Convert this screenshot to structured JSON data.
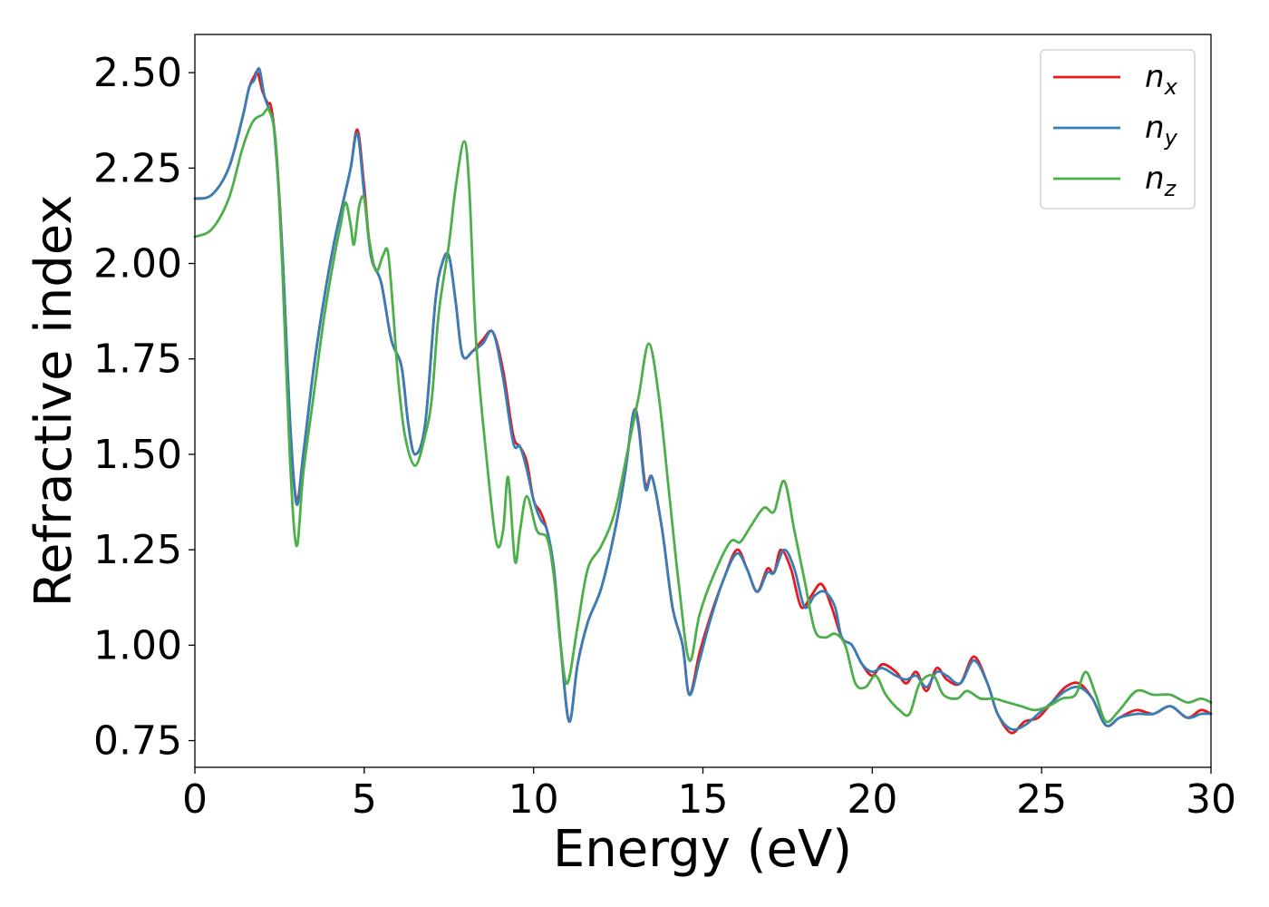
{
  "chart_data": {
    "type": "line",
    "xlabel": "Energy (eV)",
    "ylabel": "Refractive index",
    "xlim": [
      0,
      30
    ],
    "ylim": [
      0.68,
      2.6
    ],
    "x_ticks": [
      0,
      5,
      10,
      15,
      20,
      25,
      30
    ],
    "x_tick_labels": [
      "0",
      "5",
      "10",
      "15",
      "20",
      "25",
      "30"
    ],
    "y_ticks": [
      0.75,
      1.0,
      1.25,
      1.5,
      1.75,
      2.0,
      2.25,
      2.5
    ],
    "y_tick_labels": [
      "0.75",
      "1.00",
      "1.25",
      "1.50",
      "1.75",
      "2.00",
      "2.25",
      "2.50"
    ],
    "grid": false,
    "legend_position": "top-right",
    "series": [
      {
        "name": "n_x",
        "legend_base": "n",
        "legend_sub": "x",
        "color": "#e41a1c",
        "points": [
          [
            0,
            2.17
          ],
          [
            0.5,
            2.18
          ],
          [
            1.0,
            2.25
          ],
          [
            1.4,
            2.38
          ],
          [
            1.6,
            2.46
          ],
          [
            1.75,
            2.49
          ],
          [
            1.85,
            2.5
          ],
          [
            2.0,
            2.45
          ],
          [
            2.15,
            2.42
          ],
          [
            2.25,
            2.41
          ],
          [
            2.4,
            2.3
          ],
          [
            2.6,
            2.0
          ],
          [
            2.8,
            1.6
          ],
          [
            3.0,
            1.38
          ],
          [
            3.2,
            1.5
          ],
          [
            3.5,
            1.72
          ],
          [
            3.8,
            1.9
          ],
          [
            4.1,
            2.05
          ],
          [
            4.4,
            2.17
          ],
          [
            4.6,
            2.25
          ],
          [
            4.8,
            2.35
          ],
          [
            5.0,
            2.2
          ],
          [
            5.2,
            2.02
          ],
          [
            5.5,
            1.95
          ],
          [
            5.8,
            1.8
          ],
          [
            6.1,
            1.73
          ],
          [
            6.3,
            1.58
          ],
          [
            6.5,
            1.5
          ],
          [
            6.8,
            1.58
          ],
          [
            7.1,
            1.9
          ],
          [
            7.3,
            2.0
          ],
          [
            7.5,
            2.02
          ],
          [
            7.7,
            1.9
          ],
          [
            7.9,
            1.76
          ],
          [
            8.2,
            1.77
          ],
          [
            8.5,
            1.8
          ],
          [
            8.8,
            1.82
          ],
          [
            9.1,
            1.72
          ],
          [
            9.4,
            1.55
          ],
          [
            9.6,
            1.52
          ],
          [
            9.8,
            1.48
          ],
          [
            10.0,
            1.38
          ],
          [
            10.2,
            1.35
          ],
          [
            10.4,
            1.3
          ],
          [
            10.6,
            1.2
          ],
          [
            10.8,
            1.0
          ],
          [
            11.05,
            0.8
          ],
          [
            11.3,
            0.95
          ],
          [
            11.6,
            1.06
          ],
          [
            12.0,
            1.15
          ],
          [
            12.4,
            1.3
          ],
          [
            12.7,
            1.45
          ],
          [
            12.95,
            1.61
          ],
          [
            13.1,
            1.58
          ],
          [
            13.3,
            1.42
          ],
          [
            13.5,
            1.44
          ],
          [
            13.8,
            1.3
          ],
          [
            14.1,
            1.1
          ],
          [
            14.4,
            1.0
          ],
          [
            14.6,
            0.87
          ],
          [
            14.9,
            0.98
          ],
          [
            15.2,
            1.07
          ],
          [
            15.6,
            1.17
          ],
          [
            16.0,
            1.25
          ],
          [
            16.3,
            1.2
          ],
          [
            16.6,
            1.14
          ],
          [
            16.9,
            1.2
          ],
          [
            17.1,
            1.19
          ],
          [
            17.3,
            1.25
          ],
          [
            17.6,
            1.2
          ],
          [
            17.9,
            1.1
          ],
          [
            18.2,
            1.13
          ],
          [
            18.5,
            1.16
          ],
          [
            18.8,
            1.1
          ],
          [
            19.1,
            1.02
          ],
          [
            19.4,
            1.0
          ],
          [
            19.7,
            0.95
          ],
          [
            20.0,
            0.92
          ],
          [
            20.3,
            0.95
          ],
          [
            20.7,
            0.93
          ],
          [
            21.0,
            0.9
          ],
          [
            21.3,
            0.93
          ],
          [
            21.6,
            0.88
          ],
          [
            21.9,
            0.94
          ],
          [
            22.2,
            0.91
          ],
          [
            22.6,
            0.9
          ],
          [
            23.0,
            0.97
          ],
          [
            23.4,
            0.9
          ],
          [
            23.7,
            0.82
          ],
          [
            24.1,
            0.77
          ],
          [
            24.5,
            0.8
          ],
          [
            24.9,
            0.81
          ],
          [
            25.3,
            0.85
          ],
          [
            25.7,
            0.89
          ],
          [
            26.1,
            0.9
          ],
          [
            26.5,
            0.86
          ],
          [
            26.9,
            0.79
          ],
          [
            27.3,
            0.81
          ],
          [
            27.8,
            0.83
          ],
          [
            28.3,
            0.82
          ],
          [
            28.8,
            0.84
          ],
          [
            29.3,
            0.81
          ],
          [
            29.7,
            0.83
          ],
          [
            30.0,
            0.82
          ]
        ]
      },
      {
        "name": "n_y",
        "legend_base": "n",
        "legend_sub": "y",
        "color": "#377eb8",
        "points": [
          [
            0,
            2.17
          ],
          [
            0.5,
            2.18
          ],
          [
            1.0,
            2.25
          ],
          [
            1.4,
            2.38
          ],
          [
            1.6,
            2.46
          ],
          [
            1.75,
            2.48
          ],
          [
            1.9,
            2.51
          ],
          [
            2.05,
            2.44
          ],
          [
            2.2,
            2.4
          ],
          [
            2.35,
            2.34
          ],
          [
            2.6,
            2.0
          ],
          [
            2.8,
            1.6
          ],
          [
            3.0,
            1.37
          ],
          [
            3.2,
            1.5
          ],
          [
            3.5,
            1.72
          ],
          [
            3.8,
            1.9
          ],
          [
            4.1,
            2.05
          ],
          [
            4.4,
            2.17
          ],
          [
            4.6,
            2.25
          ],
          [
            4.8,
            2.34
          ],
          [
            5.0,
            2.18
          ],
          [
            5.2,
            2.02
          ],
          [
            5.5,
            1.95
          ],
          [
            5.8,
            1.8
          ],
          [
            6.1,
            1.73
          ],
          [
            6.3,
            1.58
          ],
          [
            6.5,
            1.5
          ],
          [
            6.8,
            1.58
          ],
          [
            7.1,
            1.9
          ],
          [
            7.3,
            2.0
          ],
          [
            7.5,
            2.02
          ],
          [
            7.7,
            1.9
          ],
          [
            7.9,
            1.76
          ],
          [
            8.2,
            1.77
          ],
          [
            8.5,
            1.79
          ],
          [
            8.8,
            1.82
          ],
          [
            9.1,
            1.7
          ],
          [
            9.4,
            1.53
          ],
          [
            9.6,
            1.52
          ],
          [
            9.8,
            1.46
          ],
          [
            10.0,
            1.38
          ],
          [
            10.2,
            1.33
          ],
          [
            10.4,
            1.3
          ],
          [
            10.6,
            1.2
          ],
          [
            10.8,
            1.0
          ],
          [
            11.05,
            0.8
          ],
          [
            11.3,
            0.95
          ],
          [
            11.6,
            1.06
          ],
          [
            12.0,
            1.15
          ],
          [
            12.4,
            1.3
          ],
          [
            12.7,
            1.45
          ],
          [
            12.95,
            1.61
          ],
          [
            13.1,
            1.57
          ],
          [
            13.3,
            1.41
          ],
          [
            13.5,
            1.44
          ],
          [
            13.8,
            1.3
          ],
          [
            14.1,
            1.1
          ],
          [
            14.4,
            1.0
          ],
          [
            14.6,
            0.87
          ],
          [
            14.9,
            0.96
          ],
          [
            15.2,
            1.06
          ],
          [
            15.6,
            1.17
          ],
          [
            16.0,
            1.24
          ],
          [
            16.3,
            1.2
          ],
          [
            16.6,
            1.14
          ],
          [
            16.9,
            1.19
          ],
          [
            17.1,
            1.19
          ],
          [
            17.4,
            1.25
          ],
          [
            17.7,
            1.2
          ],
          [
            18.0,
            1.1
          ],
          [
            18.3,
            1.13
          ],
          [
            18.6,
            1.14
          ],
          [
            18.9,
            1.1
          ],
          [
            19.1,
            1.02
          ],
          [
            19.4,
            1.0
          ],
          [
            19.7,
            0.95
          ],
          [
            20.0,
            0.93
          ],
          [
            20.3,
            0.94
          ],
          [
            20.7,
            0.92
          ],
          [
            21.0,
            0.91
          ],
          [
            21.3,
            0.92
          ],
          [
            21.6,
            0.89
          ],
          [
            21.9,
            0.93
          ],
          [
            22.2,
            0.92
          ],
          [
            22.6,
            0.9
          ],
          [
            23.0,
            0.96
          ],
          [
            23.4,
            0.9
          ],
          [
            23.7,
            0.82
          ],
          [
            24.1,
            0.78
          ],
          [
            24.5,
            0.79
          ],
          [
            24.9,
            0.82
          ],
          [
            25.3,
            0.85
          ],
          [
            25.7,
            0.88
          ],
          [
            26.1,
            0.89
          ],
          [
            26.5,
            0.86
          ],
          [
            26.9,
            0.79
          ],
          [
            27.3,
            0.81
          ],
          [
            27.8,
            0.82
          ],
          [
            28.3,
            0.82
          ],
          [
            28.8,
            0.84
          ],
          [
            29.3,
            0.81
          ],
          [
            29.7,
            0.82
          ],
          [
            30.0,
            0.82
          ]
        ]
      },
      {
        "name": "n_z",
        "legend_base": "n",
        "legend_sub": "z",
        "color": "#4daf4a",
        "points": [
          [
            0,
            2.07
          ],
          [
            0.5,
            2.09
          ],
          [
            1.0,
            2.17
          ],
          [
            1.4,
            2.3
          ],
          [
            1.7,
            2.37
          ],
          [
            2.0,
            2.39
          ],
          [
            2.2,
            2.4
          ],
          [
            2.4,
            2.3
          ],
          [
            2.6,
            1.95
          ],
          [
            2.8,
            1.5
          ],
          [
            3.0,
            1.26
          ],
          [
            3.2,
            1.45
          ],
          [
            3.5,
            1.65
          ],
          [
            3.8,
            1.85
          ],
          [
            4.1,
            2.01
          ],
          [
            4.3,
            2.1
          ],
          [
            4.45,
            2.16
          ],
          [
            4.6,
            2.1
          ],
          [
            4.7,
            2.05
          ],
          [
            4.85,
            2.15
          ],
          [
            5.0,
            2.17
          ],
          [
            5.15,
            2.06
          ],
          [
            5.35,
            1.98
          ],
          [
            5.55,
            2.02
          ],
          [
            5.7,
            2.03
          ],
          [
            5.85,
            1.88
          ],
          [
            6.0,
            1.7
          ],
          [
            6.2,
            1.55
          ],
          [
            6.5,
            1.47
          ],
          [
            6.8,
            1.55
          ],
          [
            7.0,
            1.65
          ],
          [
            7.2,
            1.87
          ],
          [
            7.5,
            2.05
          ],
          [
            7.7,
            2.2
          ],
          [
            7.95,
            2.32
          ],
          [
            8.1,
            2.2
          ],
          [
            8.3,
            1.8
          ],
          [
            8.6,
            1.5
          ],
          [
            8.9,
            1.27
          ],
          [
            9.1,
            1.3
          ],
          [
            9.25,
            1.44
          ],
          [
            9.45,
            1.22
          ],
          [
            9.6,
            1.3
          ],
          [
            9.8,
            1.39
          ],
          [
            10.1,
            1.3
          ],
          [
            10.4,
            1.28
          ],
          [
            10.6,
            1.18
          ],
          [
            10.8,
            1.0
          ],
          [
            11.0,
            0.9
          ],
          [
            11.3,
            1.05
          ],
          [
            11.6,
            1.2
          ],
          [
            12.0,
            1.26
          ],
          [
            12.4,
            1.35
          ],
          [
            12.8,
            1.52
          ],
          [
            13.1,
            1.65
          ],
          [
            13.4,
            1.79
          ],
          [
            13.7,
            1.65
          ],
          [
            14.0,
            1.4
          ],
          [
            14.3,
            1.15
          ],
          [
            14.6,
            0.96
          ],
          [
            14.9,
            1.08
          ],
          [
            15.3,
            1.18
          ],
          [
            15.8,
            1.27
          ],
          [
            16.1,
            1.27
          ],
          [
            16.4,
            1.31
          ],
          [
            16.8,
            1.36
          ],
          [
            17.1,
            1.35
          ],
          [
            17.4,
            1.43
          ],
          [
            17.7,
            1.3
          ],
          [
            18.0,
            1.17
          ],
          [
            18.3,
            1.04
          ],
          [
            18.6,
            1.02
          ],
          [
            18.9,
            1.03
          ],
          [
            19.2,
            1.0
          ],
          [
            19.5,
            0.9
          ],
          [
            19.8,
            0.89
          ],
          [
            20.1,
            0.92
          ],
          [
            20.4,
            0.87
          ],
          [
            20.8,
            0.83
          ],
          [
            21.1,
            0.82
          ],
          [
            21.4,
            0.9
          ],
          [
            21.8,
            0.92
          ],
          [
            22.1,
            0.87
          ],
          [
            22.5,
            0.86
          ],
          [
            22.8,
            0.88
          ],
          [
            23.2,
            0.86
          ],
          [
            23.6,
            0.86
          ],
          [
            24.0,
            0.85
          ],
          [
            24.4,
            0.84
          ],
          [
            24.8,
            0.83
          ],
          [
            25.2,
            0.84
          ],
          [
            25.6,
            0.86
          ],
          [
            26.0,
            0.87
          ],
          [
            26.3,
            0.93
          ],
          [
            26.6,
            0.87
          ],
          [
            26.9,
            0.8
          ],
          [
            27.3,
            0.83
          ],
          [
            27.8,
            0.88
          ],
          [
            28.3,
            0.87
          ],
          [
            28.8,
            0.87
          ],
          [
            29.3,
            0.85
          ],
          [
            29.7,
            0.86
          ],
          [
            30.0,
            0.85
          ]
        ]
      }
    ]
  }
}
